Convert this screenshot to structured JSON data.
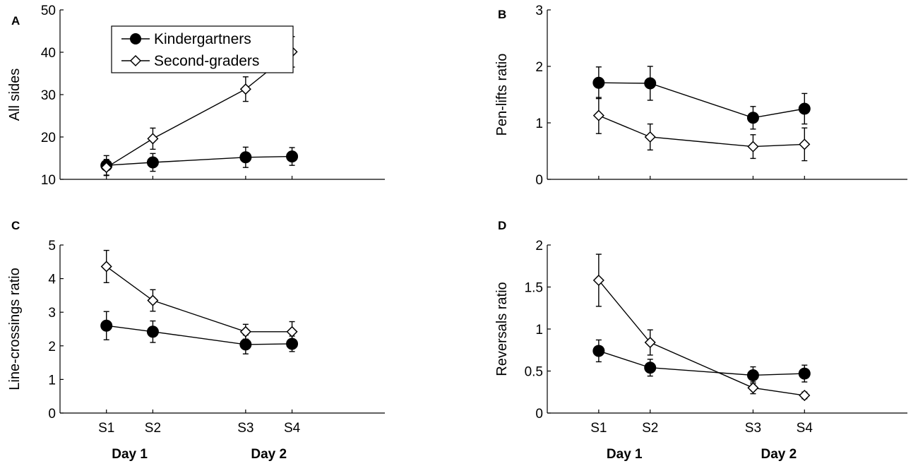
{
  "chart_data": [
    {
      "type": "line",
      "panel": "A",
      "ylabel": "All sides",
      "ylim": [
        10,
        50
      ],
      "yticks": [
        "10",
        "20",
        "30",
        "40",
        "50"
      ],
      "categories": [
        "S1",
        "S2",
        "S3",
        "S4"
      ],
      "x": [
        1,
        2,
        4,
        5
      ],
      "xlim": [
        0,
        7
      ],
      "show_xticklabels": false,
      "series": [
        {
          "name": "Kindergartners",
          "marker": "filled-circle",
          "values": [
            13.3,
            14,
            15.2,
            15.4
          ],
          "errors": [
            2.3,
            2.1,
            2.4,
            2.1
          ]
        },
        {
          "name": "Second-graders",
          "marker": "open-diamond",
          "values": [
            12.8,
            19.6,
            31.3,
            40.1
          ],
          "errors": [
            1.9,
            2.5,
            2.9,
            3.6
          ]
        }
      ],
      "legend": {
        "location": "top-left",
        "entries": [
          "Kindergartners",
          "Second-graders"
        ]
      }
    },
    {
      "type": "line",
      "panel": "B",
      "ylabel": "Pen-lifts ratio",
      "ylim": [
        0,
        3
      ],
      "yticks": [
        "0",
        "1",
        "2",
        "3"
      ],
      "categories": [
        "S1",
        "S2",
        "S3",
        "S4"
      ],
      "x": [
        1,
        2,
        4,
        5
      ],
      "xlim": [
        0,
        7
      ],
      "show_xticklabels": false,
      "series": [
        {
          "name": "Kindergartners",
          "marker": "filled-circle",
          "values": [
            1.71,
            1.7,
            1.09,
            1.25
          ],
          "errors": [
            0.28,
            0.3,
            0.2,
            0.27
          ]
        },
        {
          "name": "Second-graders",
          "marker": "open-diamond",
          "values": [
            1.13,
            0.75,
            0.58,
            0.62
          ],
          "errors": [
            0.32,
            0.23,
            0.21,
            0.29
          ]
        }
      ]
    },
    {
      "type": "line",
      "panel": "C",
      "ylabel": "Line-crossings ratio",
      "ylim": [
        0,
        5
      ],
      "yticks": [
        "0",
        "1",
        "2",
        "3",
        "4",
        "5"
      ],
      "categories": [
        "S1",
        "S2",
        "S3",
        "S4"
      ],
      "x": [
        1,
        2,
        4,
        5
      ],
      "xlim": [
        0,
        7
      ],
      "show_xticklabels": true,
      "series": [
        {
          "name": "Kindergartners",
          "marker": "filled-circle",
          "values": [
            2.6,
            2.42,
            2.04,
            2.06
          ],
          "errors": [
            0.42,
            0.32,
            0.28,
            0.23
          ]
        },
        {
          "name": "Second-graders",
          "marker": "open-diamond",
          "values": [
            4.36,
            3.35,
            2.42,
            2.42
          ],
          "errors": [
            0.48,
            0.32,
            0.22,
            0.3
          ]
        }
      ],
      "day_labels": [
        "Day 1",
        "Day 2"
      ]
    },
    {
      "type": "line",
      "panel": "D",
      "ylabel": "Reversals ratio",
      "ylim": [
        0,
        2
      ],
      "yticks": [
        "0",
        "0.5",
        "1",
        "1.5",
        "2"
      ],
      "categories": [
        "S1",
        "S2",
        "S3",
        "S4"
      ],
      "x": [
        1,
        2,
        4,
        5
      ],
      "xlim": [
        0,
        7
      ],
      "show_xticklabels": true,
      "series": [
        {
          "name": "Kindergartners",
          "marker": "filled-circle",
          "values": [
            0.74,
            0.54,
            0.45,
            0.47
          ],
          "errors": [
            0.13,
            0.1,
            0.1,
            0.1
          ]
        },
        {
          "name": "Second-graders",
          "marker": "open-diamond",
          "values": [
            1.58,
            0.84,
            0.3,
            0.21
          ],
          "errors": [
            0.31,
            0.15,
            0.07,
            0.04
          ]
        }
      ],
      "day_labels": [
        "Day 1",
        "Day 2"
      ]
    }
  ]
}
